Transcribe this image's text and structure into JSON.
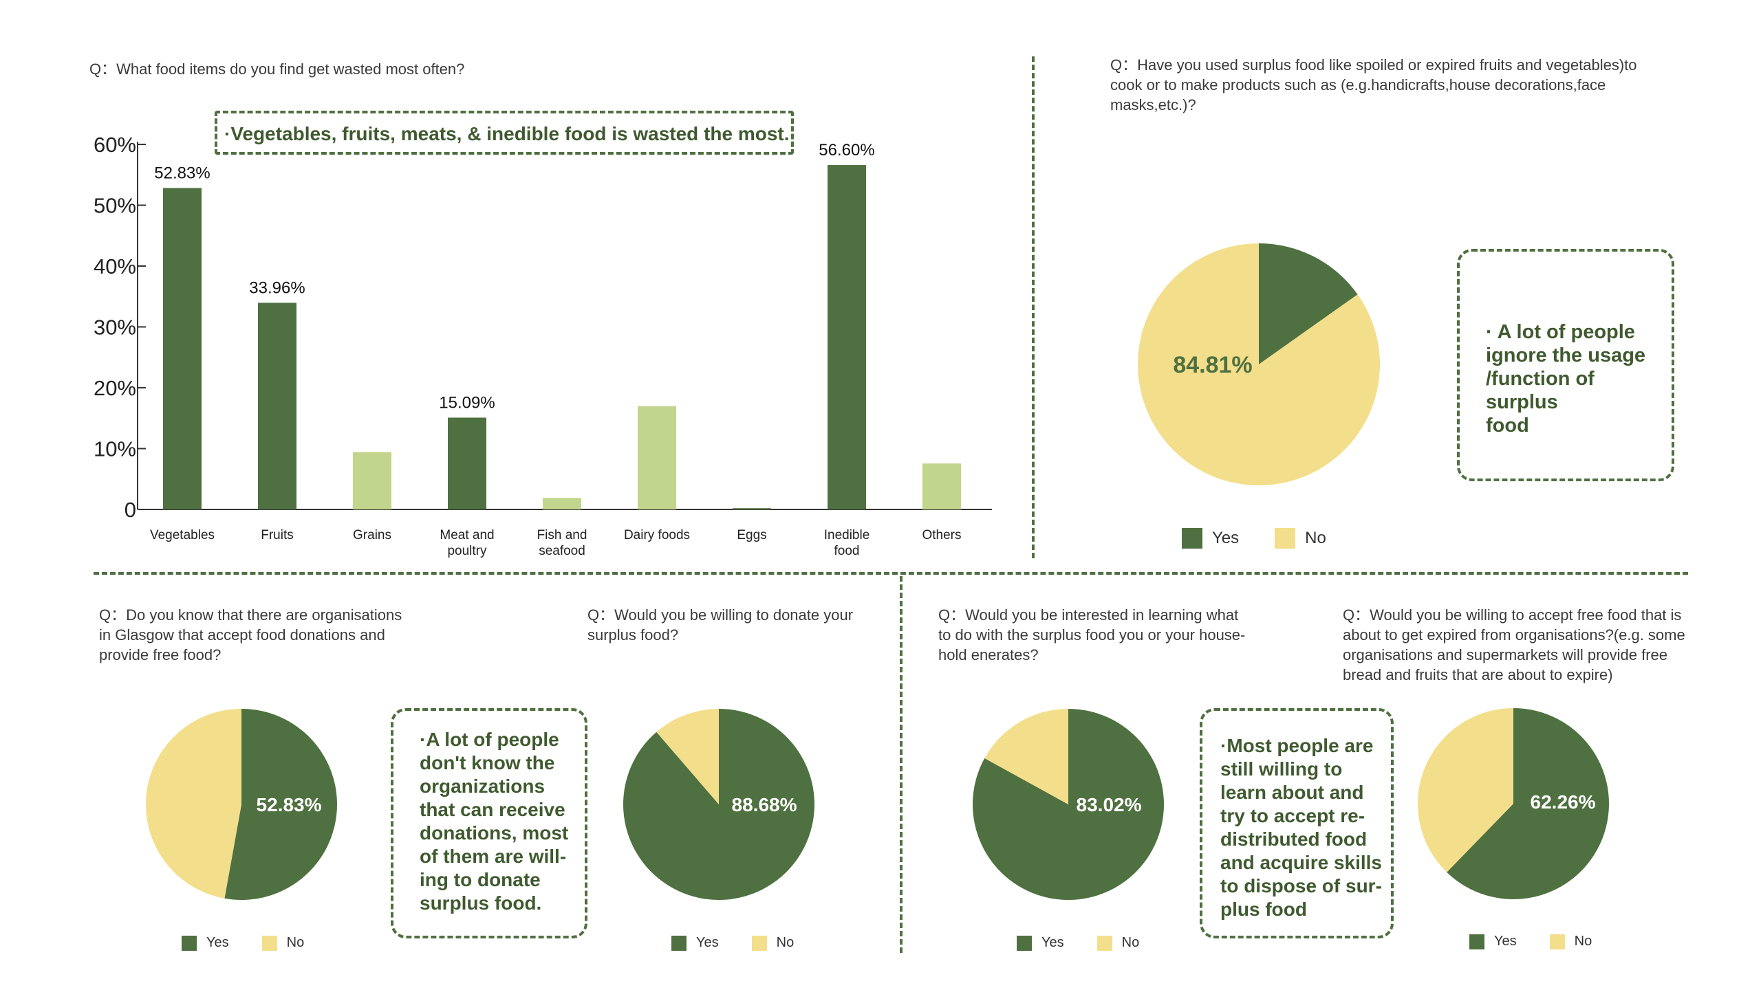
{
  "colors": {
    "dark_green": "#4f7040",
    "light_green": "#c2d58d",
    "yellow": "#f3de8b",
    "note_text": "#3f5a2f"
  },
  "bar_panel": {
    "question": "Q：What food items do you find get wasted most often?",
    "note": "·Vegetables, fruits, meats, & inedible food is wasted the most."
  },
  "pie1": {
    "question_lines": [
      "Q：Have you used surplus food like spoiled or expired fruits and vegetables)to",
      "cook or to make products such as (e.g.handicrafts,house decorations,face",
      "masks,etc.)?"
    ],
    "note_lines": [
      "· A lot of people",
      "ignore the usage",
      "/function of surplus",
      "food"
    ],
    "legend": {
      "yes": "Yes",
      "no": "No"
    }
  },
  "pie2": {
    "question_lines": [
      "Q：Do you know that there are organisations",
      "in Glasgow that accept food donations and",
      "provide free food?"
    ],
    "note_lines": [
      "·A lot of people",
      "don't know the",
      "organizations",
      "that can receive",
      "donations, most",
      "of them are will-",
      "ing to donate",
      "surplus food."
    ],
    "legend": {
      "yes": "Yes",
      "no": "No"
    }
  },
  "pie3": {
    "question_lines": [
      "Q：Would you be willing to donate your",
      "surplus food?"
    ],
    "legend": {
      "yes": "Yes",
      "no": "No"
    }
  },
  "pie4": {
    "question_lines": [
      "Q：Would you be interested in learning what",
      "to do with the surplus food you or your house-",
      "hold enerates?"
    ],
    "note_lines": [
      "·Most people are",
      "still willing to",
      "learn about and",
      "try to accept re-",
      "distributed food",
      "and acquire skills",
      "to dispose of sur-",
      "plus food"
    ],
    "legend": {
      "yes": "Yes",
      "no": "No"
    }
  },
  "pie5": {
    "question_lines": [
      "Q：Would you be willing to accept free food that is",
      "about to get expired from organisations?(e.g. some",
      "organisations and supermarkets will provide free",
      "bread and fruits that are about to expire)"
    ],
    "legend": {
      "yes": "Yes",
      "no": "No"
    }
  },
  "chart_data": [
    {
      "type": "bar",
      "categories": [
        "Vegetables",
        "Fruits",
        "Grains",
        "Meat and poultry",
        "Fish and seafood",
        "Dairy foods",
        "Eggs",
        "Inedible food",
        "Others"
      ],
      "category_lines": [
        [
          "Vegetables"
        ],
        [
          "Fruits"
        ],
        [
          "Grains"
        ],
        [
          "Meat and",
          "poultry"
        ],
        [
          "Fish and",
          "seafood"
        ],
        [
          "Dairy foods"
        ],
        [
          "Eggs"
        ],
        [
          "Inedible",
          "food"
        ],
        [
          "Others"
        ]
      ],
      "values": [
        52.83,
        33.96,
        9.43,
        15.09,
        1.89,
        16.98,
        0.2,
        56.6,
        7.55
      ],
      "highlight": [
        true,
        true,
        false,
        true,
        false,
        false,
        true,
        true,
        false
      ],
      "value_labels": [
        "52.83%",
        "33.96%",
        "",
        "15.09%",
        "",
        "",
        "",
        "56.60%",
        ""
      ],
      "ylim": [
        0,
        60
      ],
      "yticks": [
        0,
        10,
        20,
        30,
        40,
        50,
        60
      ],
      "ytick_labels": [
        "0",
        "10%",
        "20%",
        "30%",
        "40%",
        "50%",
        "60%"
      ],
      "title": "",
      "xlabel": "",
      "ylabel": ""
    },
    {
      "type": "pie",
      "slices": [
        {
          "name": "Yes",
          "value": 15.19
        },
        {
          "name": "No",
          "value": 84.81
        }
      ],
      "label": "84.81%",
      "label_slice": "No"
    },
    {
      "type": "pie",
      "slices": [
        {
          "name": "Yes",
          "value": 52.83
        },
        {
          "name": "No",
          "value": 47.17
        }
      ],
      "label": "52.83%",
      "label_slice": "Yes"
    },
    {
      "type": "pie",
      "slices": [
        {
          "name": "Yes",
          "value": 88.68
        },
        {
          "name": "No",
          "value": 11.32
        }
      ],
      "label": "88.68%",
      "label_slice": "Yes"
    },
    {
      "type": "pie",
      "slices": [
        {
          "name": "Yes",
          "value": 83.02
        },
        {
          "name": "No",
          "value": 16.98
        }
      ],
      "label": "83.02%",
      "label_slice": "Yes"
    },
    {
      "type": "pie",
      "slices": [
        {
          "name": "Yes",
          "value": 62.26
        },
        {
          "name": "No",
          "value": 37.74
        }
      ],
      "label": "62.26%",
      "label_slice": "Yes"
    }
  ]
}
